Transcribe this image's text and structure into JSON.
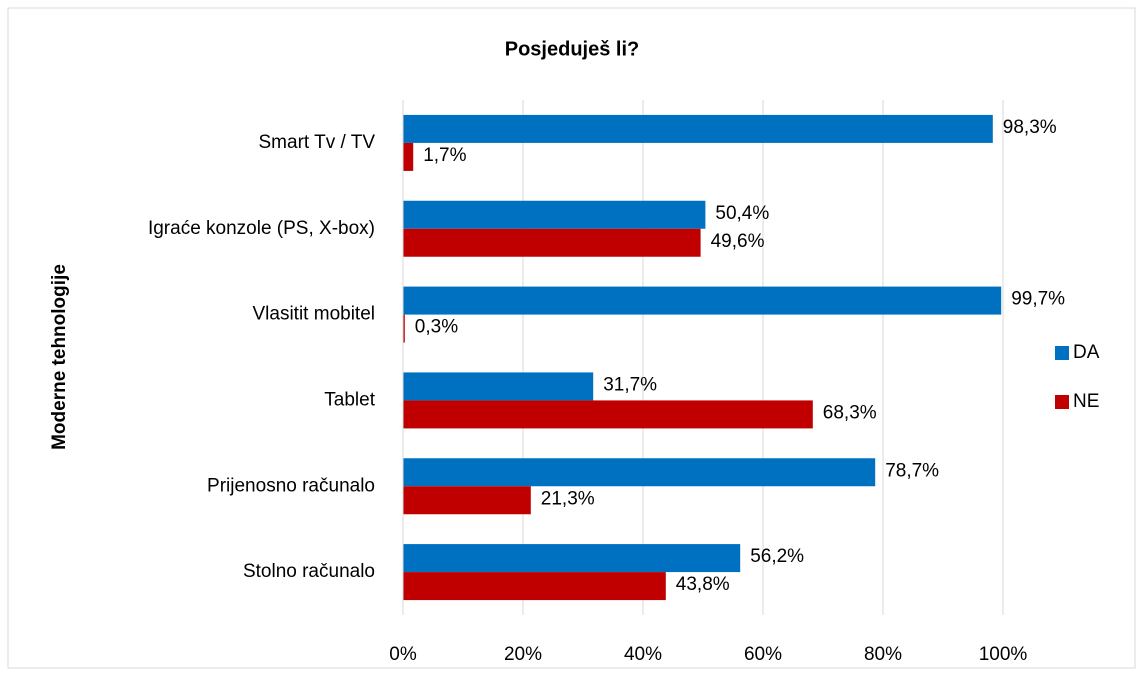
{
  "chart_data": {
    "type": "hbar",
    "title": "Posjeduješ li?",
    "y_axis_label": "Moderne tehnologije",
    "categories": [
      "Smart Tv / TV",
      "Igraće konzole (PS, X-box)",
      "Vlasitit mobitel",
      "Tablet",
      "Prijenosno računalo",
      "Stolno računalo"
    ],
    "series": [
      {
        "name": "DA",
        "color": "#0070c0",
        "values": [
          98.3,
          50.4,
          99.7,
          31.7,
          78.7,
          56.2
        ],
        "value_labels": [
          "98,3%",
          "50,4%",
          "99,7%",
          "31,7%",
          "78,7%",
          "56,2%"
        ]
      },
      {
        "name": "NE",
        "color": "#c00000",
        "values": [
          1.7,
          49.6,
          0.3,
          68.3,
          21.3,
          43.8
        ],
        "value_labels": [
          "1,7%",
          "49,6%",
          "0,3%",
          "68,3%",
          "21,3%",
          "43,8%"
        ]
      }
    ],
    "xlim": [
      0,
      100
    ],
    "xticks": [
      {
        "value": 0,
        "label": "0%"
      },
      {
        "value": 20,
        "label": "20%"
      },
      {
        "value": 40,
        "label": "40%"
      },
      {
        "value": 60,
        "label": "60%"
      },
      {
        "value": 80,
        "label": "80%"
      },
      {
        "value": 100,
        "label": "100%"
      }
    ],
    "grid": true,
    "legend": "right"
  }
}
